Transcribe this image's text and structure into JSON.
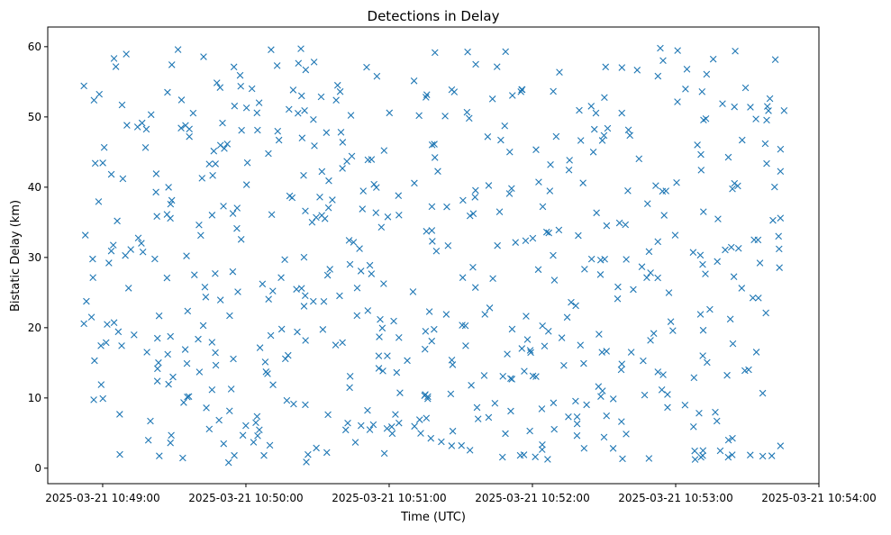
{
  "chart_data": {
    "type": "scatter",
    "title": "Detections in Delay",
    "xlabel": "Time (UTC)",
    "ylabel": "Bistatic Delay (km)",
    "marker": "x",
    "color": "#1f77b4",
    "x_type": "datetime",
    "xlim": [
      "2025-03-21 10:48:37",
      "2025-03-21 10:54:00"
    ],
    "ylim": [
      -2.2,
      62.8
    ],
    "x_ticks": [
      "2025-03-21 10:49:00",
      "2025-03-21 10:50:00",
      "2025-03-21 10:51:00",
      "2025-03-21 10:52:00",
      "2025-03-21 10:53:00",
      "2025-03-21 10:54:00"
    ],
    "y_ticks": [
      0,
      10,
      20,
      30,
      40,
      50,
      60
    ],
    "grid": false,
    "legend": "none",
    "point_count": 600,
    "seed": 20250321,
    "x_range": [
      "2025-03-21 10:48:52",
      "2025-03-21 10:53:46"
    ],
    "y_range": [
      0.8,
      59.8
    ]
  }
}
